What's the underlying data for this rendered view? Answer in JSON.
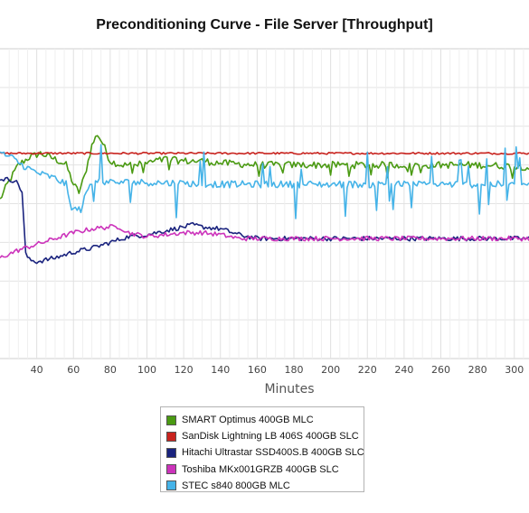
{
  "chart_data": {
    "type": "line",
    "title": "Preconditioning Curve - File Server [Throughput]",
    "xlabel": "Minutes",
    "ylabel": "",
    "x_tick_labels": [
      "40",
      "60",
      "80",
      "100",
      "120",
      "140",
      "160",
      "180",
      "200",
      "220",
      "240",
      "260",
      "280",
      "300"
    ],
    "xlim": [
      20,
      308
    ],
    "ylim": [
      0,
      8
    ],
    "y_ticks_unlabeled": [
      1,
      2,
      3,
      4,
      5,
      6,
      7
    ],
    "grid": true,
    "legend_position": "bottom",
    "series": [
      {
        "name": "SMART Optimus 400GB MLC",
        "color": "#4a9a12",
        "points": [
          [
            20,
            4.1
          ],
          [
            24,
            4.5
          ],
          [
            30,
            5.0
          ],
          [
            36,
            5.2
          ],
          [
            42,
            5.3
          ],
          [
            50,
            5.15
          ],
          [
            56,
            5.0
          ],
          [
            60,
            4.5
          ],
          [
            63,
            4.3
          ],
          [
            66,
            4.7
          ],
          [
            70,
            5.5
          ],
          [
            73,
            5.8
          ],
          [
            76,
            5.55
          ],
          [
            80,
            5.1
          ],
          [
            86,
            5.0
          ],
          [
            94,
            5.0
          ],
          [
            100,
            5.05
          ],
          [
            110,
            5.15
          ],
          [
            120,
            5.1
          ],
          [
            130,
            5.1
          ],
          [
            140,
            5.05
          ],
          [
            160,
            5.0
          ],
          [
            180,
            5.0
          ],
          [
            200,
            5.0
          ],
          [
            220,
            5.0
          ],
          [
            240,
            5.0
          ],
          [
            260,
            5.0
          ],
          [
            280,
            5.0
          ],
          [
            308,
            4.95
          ]
        ],
        "noise": 0.09
      },
      {
        "name": "SanDisk Lightning LB 406S 400GB SLC",
        "color": "#c8231e",
        "points": [
          [
            20,
            5.3
          ],
          [
            60,
            5.3
          ],
          [
            100,
            5.3
          ],
          [
            150,
            5.3
          ],
          [
            200,
            5.3
          ],
          [
            250,
            5.3
          ],
          [
            308,
            5.3
          ]
        ],
        "noise": 0.025
      },
      {
        "name": "Hitachi Ultrastar SSD400S.B 400GB SLC",
        "color": "#1a237e",
        "points": [
          [
            20,
            4.65
          ],
          [
            28,
            4.6
          ],
          [
            30,
            4.5
          ],
          [
            32,
            4.3
          ],
          [
            34,
            2.7
          ],
          [
            36,
            2.55
          ],
          [
            40,
            2.5
          ],
          [
            50,
            2.6
          ],
          [
            60,
            2.75
          ],
          [
            70,
            2.85
          ],
          [
            80,
            3.0
          ],
          [
            90,
            3.15
          ],
          [
            100,
            3.2
          ],
          [
            110,
            3.3
          ],
          [
            120,
            3.4
          ],
          [
            125,
            3.45
          ],
          [
            130,
            3.4
          ],
          [
            140,
            3.35
          ],
          [
            150,
            3.2
          ],
          [
            160,
            3.1
          ],
          [
            170,
            3.1
          ],
          [
            200,
            3.1
          ],
          [
            240,
            3.1
          ],
          [
            280,
            3.1
          ],
          [
            308,
            3.1
          ]
        ],
        "noise": 0.06
      },
      {
        "name": "Toshiba MKx001GRZB 400GB SLC",
        "color": "#cc33bb",
        "points": [
          [
            20,
            2.6
          ],
          [
            30,
            2.8
          ],
          [
            40,
            2.95
          ],
          [
            50,
            3.1
          ],
          [
            60,
            3.25
          ],
          [
            70,
            3.35
          ],
          [
            80,
            3.4
          ],
          [
            85,
            3.4
          ],
          [
            90,
            3.25
          ],
          [
            100,
            3.15
          ],
          [
            110,
            3.2
          ],
          [
            120,
            3.25
          ],
          [
            130,
            3.25
          ],
          [
            140,
            3.2
          ],
          [
            150,
            3.1
          ],
          [
            160,
            3.1
          ],
          [
            200,
            3.1
          ],
          [
            240,
            3.1
          ],
          [
            280,
            3.1
          ],
          [
            308,
            3.1
          ]
        ],
        "noise": 0.06
      },
      {
        "name": "STEC s840 800GB MLC",
        "color": "#45b3e8",
        "points": [
          [
            20,
            5.3
          ],
          [
            26,
            5.2
          ],
          [
            32,
            5.0
          ],
          [
            40,
            4.8
          ],
          [
            50,
            4.65
          ],
          [
            56,
            4.5
          ],
          [
            58,
            4.0
          ],
          [
            60,
            3.85
          ],
          [
            64,
            3.85
          ],
          [
            68,
            4.4
          ],
          [
            72,
            4.6
          ],
          [
            80,
            4.55
          ],
          [
            90,
            4.55
          ],
          [
            100,
            4.55
          ],
          [
            140,
            4.5
          ],
          [
            200,
            4.5
          ],
          [
            260,
            4.5
          ],
          [
            308,
            4.5
          ]
        ],
        "noise": 0.09
      }
    ]
  }
}
